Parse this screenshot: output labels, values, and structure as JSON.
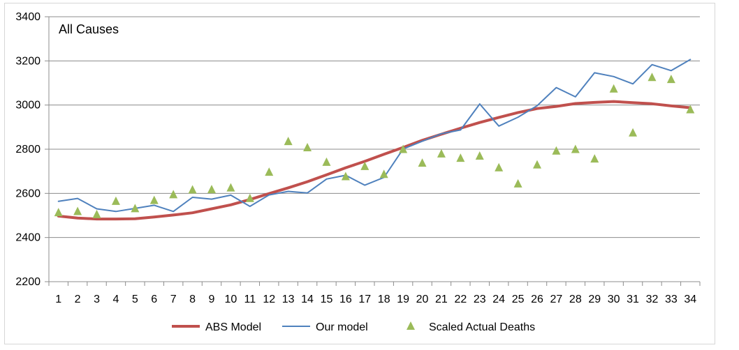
{
  "chart_data": {
    "type": "line",
    "title": "All Causes",
    "xlabel": "",
    "ylabel": "",
    "x": [
      1,
      2,
      3,
      4,
      5,
      6,
      7,
      8,
      9,
      10,
      11,
      12,
      13,
      14,
      15,
      16,
      17,
      18,
      19,
      20,
      21,
      22,
      23,
      24,
      25,
      26,
      27,
      28,
      29,
      30,
      31,
      32,
      33,
      34
    ],
    "ylim": [
      2200,
      3400
    ],
    "yticks": [
      2200,
      2400,
      2600,
      2800,
      3000,
      3200,
      3400
    ],
    "grid": true,
    "legend_position": "bottom",
    "series": [
      {
        "name": "ABS Model",
        "style": "line",
        "color": "#c0504d",
        "values": [
          2497,
          2488,
          2484,
          2484,
          2485,
          2493,
          2502,
          2512,
          2530,
          2548,
          2572,
          2599,
          2625,
          2653,
          2684,
          2716,
          2745,
          2777,
          2808,
          2840,
          2868,
          2895,
          2921,
          2944,
          2966,
          2984,
          2994,
          3007,
          3012,
          3016,
          3011,
          3006,
          2996,
          2988
        ]
      },
      {
        "name": "Our model",
        "style": "line",
        "color": "#4f81bd",
        "values": [
          2564,
          2577,
          2530,
          2518,
          2532,
          2546,
          2518,
          2582,
          2574,
          2592,
          2541,
          2593,
          2609,
          2602,
          2665,
          2682,
          2637,
          2672,
          2801,
          2836,
          2870,
          2887,
          3005,
          2905,
          2945,
          2997,
          3079,
          3037,
          3146,
          3129,
          3096,
          3183,
          3156,
          3206
        ]
      },
      {
        "name": "Scaled Actual Deaths",
        "style": "marker",
        "marker": "triangle",
        "color": "#9bbb59",
        "values": [
          2514,
          2519,
          2505,
          2565,
          2532,
          2569,
          2595,
          2617,
          2618,
          2626,
          2578,
          2697,
          2836,
          2808,
          2742,
          2677,
          2723,
          2687,
          2800,
          2738,
          2780,
          2760,
          2770,
          2717,
          2644,
          2730,
          2793,
          2800,
          2757,
          3074,
          2875,
          3126,
          3117,
          2980
        ]
      }
    ]
  }
}
